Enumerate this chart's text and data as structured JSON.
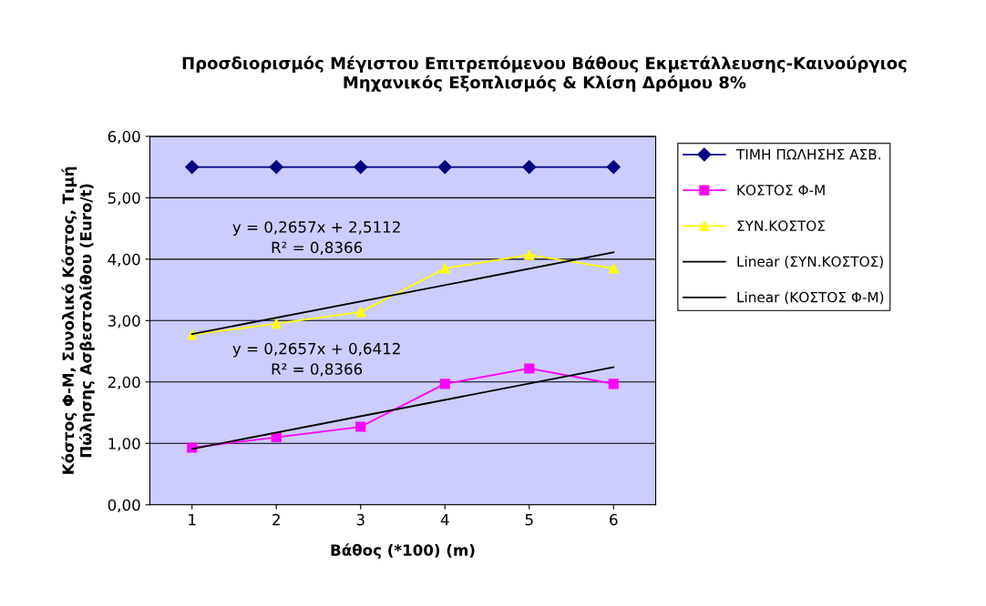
{
  "chart_data": {
    "type": "line",
    "title": "Προσδιορισμός Μέγιστου Επιτρεπόμενου Βάθους Εκμετάλλευσης-Καινούργιος\nΜηχανικός Εξοπλισμός & Κλίση Δρόμου 8%",
    "xlabel": "Βάθος (*100) (m)",
    "ylabel": "Κόστος Φ-Μ, Συνολικό Κόστος, Τιμή\nΠώλησης Ασβεστολίθου (Euro/t)",
    "categories": [
      "1",
      "2",
      "3",
      "4",
      "5",
      "6"
    ],
    "series": [
      {
        "name": "ΤΙΜΗ ΠΩΛΗΣΗΣ ΑΣΒ.",
        "color": "#000080",
        "marker": "diamond",
        "values": [
          5.5,
          5.5,
          5.5,
          5.5,
          5.5,
          5.5
        ]
      },
      {
        "name": "ΚΟΣΤΟΣ Φ-Μ",
        "color": "#ff00ff",
        "marker": "square",
        "values": [
          0.93,
          1.1,
          1.27,
          1.97,
          2.22,
          1.97
        ]
      },
      {
        "name": "ΣΥΝ.ΚΟΣΤΟΣ",
        "color": "#ffff00",
        "marker": "triangle",
        "values": [
          2.77,
          2.95,
          3.14,
          3.85,
          4.07,
          3.85
        ]
      },
      {
        "name": "Linear (ΣΥΝ.ΚΟΣΤΟΣ)",
        "color": "#000000",
        "marker": "none",
        "x": [
          "1",
          "6"
        ],
        "values": [
          2.78,
          4.11
        ]
      },
      {
        "name": "Linear (ΚΟΣΤΟΣ Φ-Μ)",
        "color": "#000000",
        "marker": "none",
        "x": [
          "1",
          "6"
        ],
        "values": [
          0.91,
          2.24
        ]
      }
    ],
    "annotations": [
      "y = 0,2657x + 2,5112\nR² = 0,8366",
      "y = 0,2657x + 0,6412\nR² = 0,8366"
    ],
    "ylim": [
      0,
      6
    ],
    "yticks": [
      {
        "value": 0,
        "label": "0,00"
      },
      {
        "value": 1,
        "label": "1,00"
      },
      {
        "value": 2,
        "label": "2,00"
      },
      {
        "value": 3,
        "label": "3,00"
      },
      {
        "value": 4,
        "label": "4,00"
      },
      {
        "value": 5,
        "label": "5,00"
      },
      {
        "value": 6,
        "label": "6,00"
      }
    ],
    "grid": "y",
    "legend": "right",
    "line_style": "solid"
  }
}
